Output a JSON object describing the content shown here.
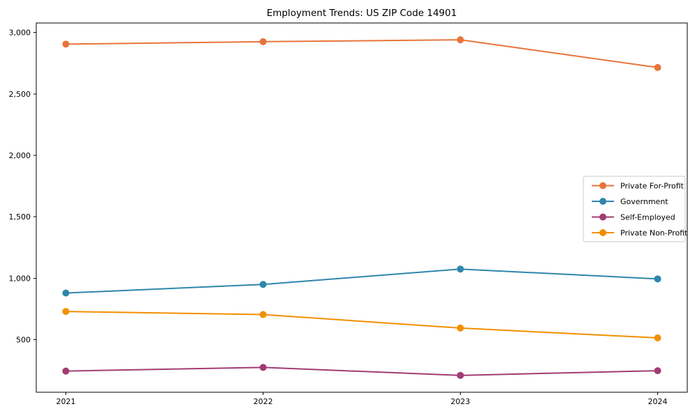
{
  "chart_data": {
    "type": "line",
    "title": "Employment Trends: US ZIP Code 14901",
    "categories": [
      "2021",
      "2022",
      "2023",
      "2024"
    ],
    "series": [
      {
        "name": "Private For-Profit",
        "color": "#E8743B",
        "values": [
          2905,
          2925,
          2940,
          2715
        ]
      },
      {
        "name": "Government",
        "color": "#2E86AB",
        "values": [
          880,
          950,
          1075,
          995
        ]
      },
      {
        "name": "Self-Employed",
        "color": "#A23B72",
        "values": [
          245,
          275,
          210,
          248
        ]
      },
      {
        "name": "Private Non-Profit",
        "color": "#F18F01",
        "values": [
          730,
          705,
          595,
          515
        ]
      }
    ],
    "xlabel": "",
    "ylabel": "",
    "ylim": [
      73,
      3077
    ],
    "y_ticks": [
      500,
      1000,
      1500,
      2000,
      2500,
      3000
    ],
    "y_tick_labels": [
      "500",
      "1,000",
      "1,500",
      "2,000",
      "2,500",
      "3,000"
    ],
    "grid": false,
    "legend_position": "center right",
    "marker": "circle",
    "axis_color": "#000000",
    "legend_border_color": "#c9c9c9"
  }
}
